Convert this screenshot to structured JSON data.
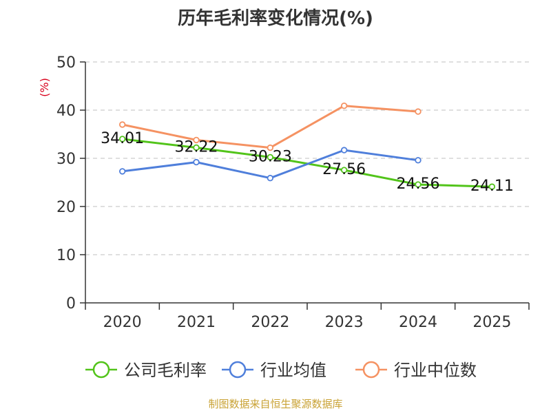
{
  "chart_data": {
    "type": "line",
    "title": "历年毛利率变化情况(%)",
    "unit_label": "(%)",
    "categories": [
      "2020",
      "2021",
      "2022",
      "2023",
      "2024",
      "2025"
    ],
    "ylim": [
      0,
      50
    ],
    "yticks": [
      0,
      10,
      20,
      30,
      40,
      50
    ],
    "grid": true,
    "legend_position": "bottom",
    "series": [
      {
        "name": "公司毛利率",
        "color": "#52c41a",
        "values": [
          34.01,
          32.22,
          30.23,
          27.56,
          24.56,
          24.11
        ],
        "labels": [
          "34.01",
          "32.22",
          "30.23",
          "27.56",
          "24.56",
          "24.11"
        ]
      },
      {
        "name": "行业均值",
        "color": "#4f7fdb",
        "values": [
          27.3,
          29.2,
          25.9,
          31.7,
          29.6,
          null
        ]
      },
      {
        "name": "行业中位数",
        "color": "#f59262",
        "values": [
          37.0,
          33.8,
          32.2,
          40.9,
          39.7,
          null
        ]
      }
    ]
  },
  "colors": {
    "axis": "#333333",
    "grid": "#cccccc",
    "unit": "#d9001b",
    "source": "#c9a234"
  },
  "source_note": "制图数据来自恒生聚源数据库"
}
